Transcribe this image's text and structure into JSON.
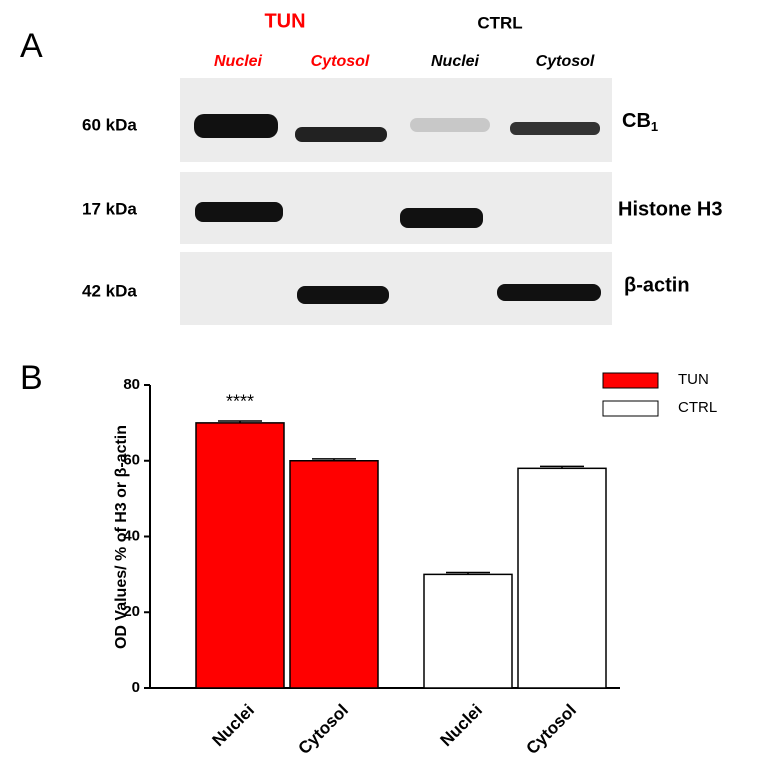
{
  "blot": {
    "panel": "A",
    "groups": [
      "TUN",
      "CTRL"
    ],
    "lanes": [
      "Nuclei",
      "Cytosol",
      "Nuclei",
      "Cytosol"
    ],
    "rows": [
      {
        "size": "60 kDa",
        "protein": "CB",
        "subscript": "1"
      },
      {
        "size": "17 kDa",
        "protein": "Histone H3"
      },
      {
        "size": "42 kDa",
        "protein": "β-actin"
      }
    ]
  },
  "chart_data": {
    "type": "bar",
    "panel": "B",
    "categories": [
      "Nuclei",
      "Cytosol",
      "Nuclei",
      "Cytosol"
    ],
    "series": [
      {
        "name": "TUN",
        "color": "#ff0000",
        "values": [
          70,
          60,
          null,
          null
        ],
        "errors": [
          0.5,
          0.5,
          null,
          null
        ]
      },
      {
        "name": "CTRL",
        "color": "#ffffff",
        "values": [
          null,
          null,
          30,
          58
        ],
        "errors": [
          null,
          null,
          0.5,
          0.5
        ]
      }
    ],
    "y_label": "OD Values/ % of H3 or β-actin",
    "annotation": "****",
    "ylim": [
      0,
      80
    ],
    "yticks": [
      0,
      20,
      40,
      60,
      80
    ],
    "legend": "top-right"
  }
}
